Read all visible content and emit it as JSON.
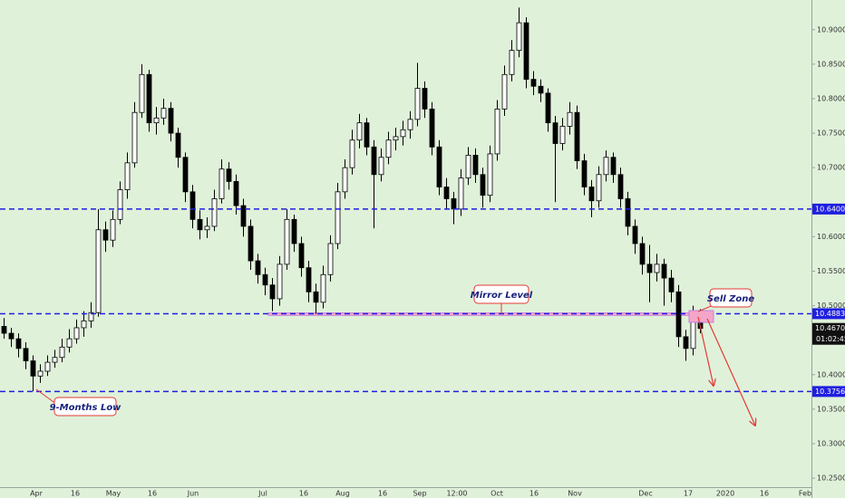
{
  "chart_data": {
    "type": "candlestick",
    "candles": [
      [
        10.47,
        10.482,
        10.452,
        10.46
      ],
      [
        10.46,
        10.468,
        10.44,
        10.452
      ],
      [
        10.452,
        10.46,
        10.425,
        10.438
      ],
      [
        10.438,
        10.447,
        10.408,
        10.42
      ],
      [
        10.42,
        10.428,
        10.376,
        10.398
      ],
      [
        10.398,
        10.415,
        10.388,
        10.405
      ],
      [
        10.405,
        10.428,
        10.398,
        10.418
      ],
      [
        10.418,
        10.436,
        10.41,
        10.425
      ],
      [
        10.425,
        10.452,
        10.418,
        10.44
      ],
      [
        10.44,
        10.466,
        10.432,
        10.452
      ],
      [
        10.452,
        10.48,
        10.445,
        10.468
      ],
      [
        10.468,
        10.492,
        10.455,
        10.478
      ],
      [
        10.478,
        10.505,
        10.468,
        10.49
      ],
      [
        10.49,
        10.64,
        10.484,
        10.61
      ],
      [
        10.61,
        10.622,
        10.578,
        10.595
      ],
      [
        10.595,
        10.638,
        10.585,
        10.625
      ],
      [
        10.625,
        10.68,
        10.618,
        10.668
      ],
      [
        10.668,
        10.722,
        10.655,
        10.707
      ],
      [
        10.707,
        10.795,
        10.7,
        10.78
      ],
      [
        10.78,
        10.85,
        10.772,
        10.835
      ],
      [
        10.835,
        10.842,
        10.752,
        10.765
      ],
      [
        10.765,
        10.788,
        10.748,
        10.772
      ],
      [
        10.772,
        10.8,
        10.762,
        10.786
      ],
      [
        10.786,
        10.795,
        10.738,
        10.75
      ],
      [
        10.75,
        10.758,
        10.7,
        10.715
      ],
      [
        10.715,
        10.722,
        10.65,
        10.665
      ],
      [
        10.665,
        10.675,
        10.612,
        10.625
      ],
      [
        10.625,
        10.638,
        10.596,
        10.61
      ],
      [
        10.61,
        10.628,
        10.598,
        10.615
      ],
      [
        10.615,
        10.668,
        10.608,
        10.655
      ],
      [
        10.655,
        10.712,
        10.648,
        10.698
      ],
      [
        10.698,
        10.708,
        10.668,
        10.68
      ],
      [
        10.68,
        10.69,
        10.632,
        10.645
      ],
      [
        10.645,
        10.655,
        10.6,
        10.615
      ],
      [
        10.615,
        10.625,
        10.552,
        10.565
      ],
      [
        10.565,
        10.575,
        10.532,
        10.545
      ],
      [
        10.545,
        10.555,
        10.515,
        10.53
      ],
      [
        10.53,
        10.54,
        10.492,
        10.51
      ],
      [
        10.51,
        10.572,
        10.5,
        10.56
      ],
      [
        10.56,
        10.64,
        10.552,
        10.625
      ],
      [
        10.625,
        10.632,
        10.578,
        10.59
      ],
      [
        10.59,
        10.6,
        10.542,
        10.555
      ],
      [
        10.555,
        10.565,
        10.505,
        10.52
      ],
      [
        10.52,
        10.532,
        10.488,
        10.505
      ],
      [
        10.505,
        10.558,
        10.496,
        10.545
      ],
      [
        10.545,
        10.602,
        10.535,
        10.59
      ],
      [
        10.59,
        10.678,
        10.582,
        10.665
      ],
      [
        10.665,
        10.712,
        10.655,
        10.7
      ],
      [
        10.7,
        10.755,
        10.69,
        10.74
      ],
      [
        10.74,
        10.778,
        10.728,
        10.765
      ],
      [
        10.765,
        10.772,
        10.718,
        10.73
      ],
      [
        10.73,
        10.74,
        10.612,
        10.69
      ],
      [
        10.69,
        10.728,
        10.68,
        10.715
      ],
      [
        10.715,
        10.752,
        10.705,
        10.74
      ],
      [
        10.74,
        10.758,
        10.725,
        10.745
      ],
      [
        10.745,
        10.768,
        10.732,
        10.755
      ],
      [
        10.755,
        10.782,
        10.742,
        10.77
      ],
      [
        10.77,
        10.852,
        10.76,
        10.815
      ],
      [
        10.815,
        10.825,
        10.772,
        10.785
      ],
      [
        10.785,
        10.795,
        10.718,
        10.73
      ],
      [
        10.73,
        10.74,
        10.66,
        10.672
      ],
      [
        10.672,
        10.685,
        10.64,
        10.655
      ],
      [
        10.655,
        10.665,
        10.618,
        10.64
      ],
      [
        10.64,
        10.698,
        10.63,
        10.685
      ],
      [
        10.685,
        10.73,
        10.675,
        10.718
      ],
      [
        10.718,
        10.728,
        10.678,
        10.69
      ],
      [
        10.69,
        10.7,
        10.642,
        10.66
      ],
      [
        10.66,
        10.732,
        10.65,
        10.72
      ],
      [
        10.72,
        10.798,
        10.71,
        10.785
      ],
      [
        10.785,
        10.848,
        10.775,
        10.835
      ],
      [
        10.835,
        10.885,
        10.825,
        10.87
      ],
      [
        10.87,
        10.932,
        10.86,
        10.91
      ],
      [
        10.91,
        10.918,
        10.815,
        10.828
      ],
      [
        10.828,
        10.84,
        10.805,
        10.818
      ],
      [
        10.818,
        10.828,
        10.795,
        10.808
      ],
      [
        10.808,
        10.815,
        10.752,
        10.765
      ],
      [
        10.765,
        10.775,
        10.65,
        10.735
      ],
      [
        10.735,
        10.772,
        10.725,
        10.76
      ],
      [
        10.76,
        10.795,
        10.748,
        10.78
      ],
      [
        10.78,
        10.79,
        10.698,
        10.71
      ],
      [
        10.71,
        10.72,
        10.66,
        10.672
      ],
      [
        10.672,
        10.682,
        10.628,
        10.652
      ],
      [
        10.652,
        10.702,
        10.642,
        10.69
      ],
      [
        10.69,
        10.725,
        10.68,
        10.715
      ],
      [
        10.715,
        10.722,
        10.678,
        10.69
      ],
      [
        10.69,
        10.7,
        10.642,
        10.655
      ],
      [
        10.655,
        10.665,
        10.602,
        10.615
      ],
      [
        10.615,
        10.625,
        10.575,
        10.59
      ],
      [
        10.59,
        10.6,
        10.545,
        10.56
      ],
      [
        10.56,
        10.588,
        10.505,
        10.548
      ],
      [
        10.548,
        10.575,
        10.535,
        10.56
      ],
      [
        10.56,
        10.568,
        10.5,
        10.54
      ],
      [
        10.54,
        10.552,
        10.505,
        10.52
      ],
      [
        10.52,
        10.53,
        10.44,
        10.455
      ],
      [
        10.455,
        10.465,
        10.42,
        10.438
      ],
      [
        10.438,
        10.5,
        10.428,
        10.488
      ],
      [
        10.488,
        10.495,
        10.46,
        10.467
      ]
    ],
    "color_up": "#ffffff",
    "color_down": "#000000",
    "ylim": [
      10.237,
      10.943
    ],
    "yticks": [
      {
        "value": 10.9,
        "label": "10.90000"
      },
      {
        "value": 10.85,
        "label": "10.85000"
      },
      {
        "value": 10.8,
        "label": "10.80000"
      },
      {
        "value": 10.75,
        "label": "10.75000"
      },
      {
        "value": 10.7,
        "label": "10.70000"
      },
      {
        "value": 10.6,
        "label": "10.60000"
      },
      {
        "value": 10.55,
        "label": "10.55000"
      },
      {
        "value": 10.5,
        "label": "10.50000"
      },
      {
        "value": 10.4,
        "label": "10.40000"
      },
      {
        "value": 10.35,
        "label": "10.35000"
      },
      {
        "value": 10.3,
        "label": "10.30000"
      },
      {
        "value": 10.25,
        "label": "10.25000"
      }
    ],
    "xticks": [
      "Apr",
      "16",
      "May",
      "16",
      "Jun",
      "Jul",
      "16",
      "Aug",
      "16",
      "Sep",
      "12:00",
      "Oct",
      "16",
      "Nov",
      "Dec",
      "17",
      "2020",
      "16",
      "Feb"
    ],
    "levels": [
      {
        "value": 10.64001,
        "label": "10.64001"
      },
      {
        "value": 10.48838,
        "label": "10.48838"
      },
      {
        "value": 10.3756,
        "label": "10.37560"
      }
    ],
    "level_color": "#1f1fe0",
    "last_price": {
      "value": 10.46701,
      "label": "10.46701"
    },
    "countdown": "01:02:45",
    "annotations": [
      "Mirror Level",
      "Sell Zone",
      "9-Months Low"
    ]
  }
}
